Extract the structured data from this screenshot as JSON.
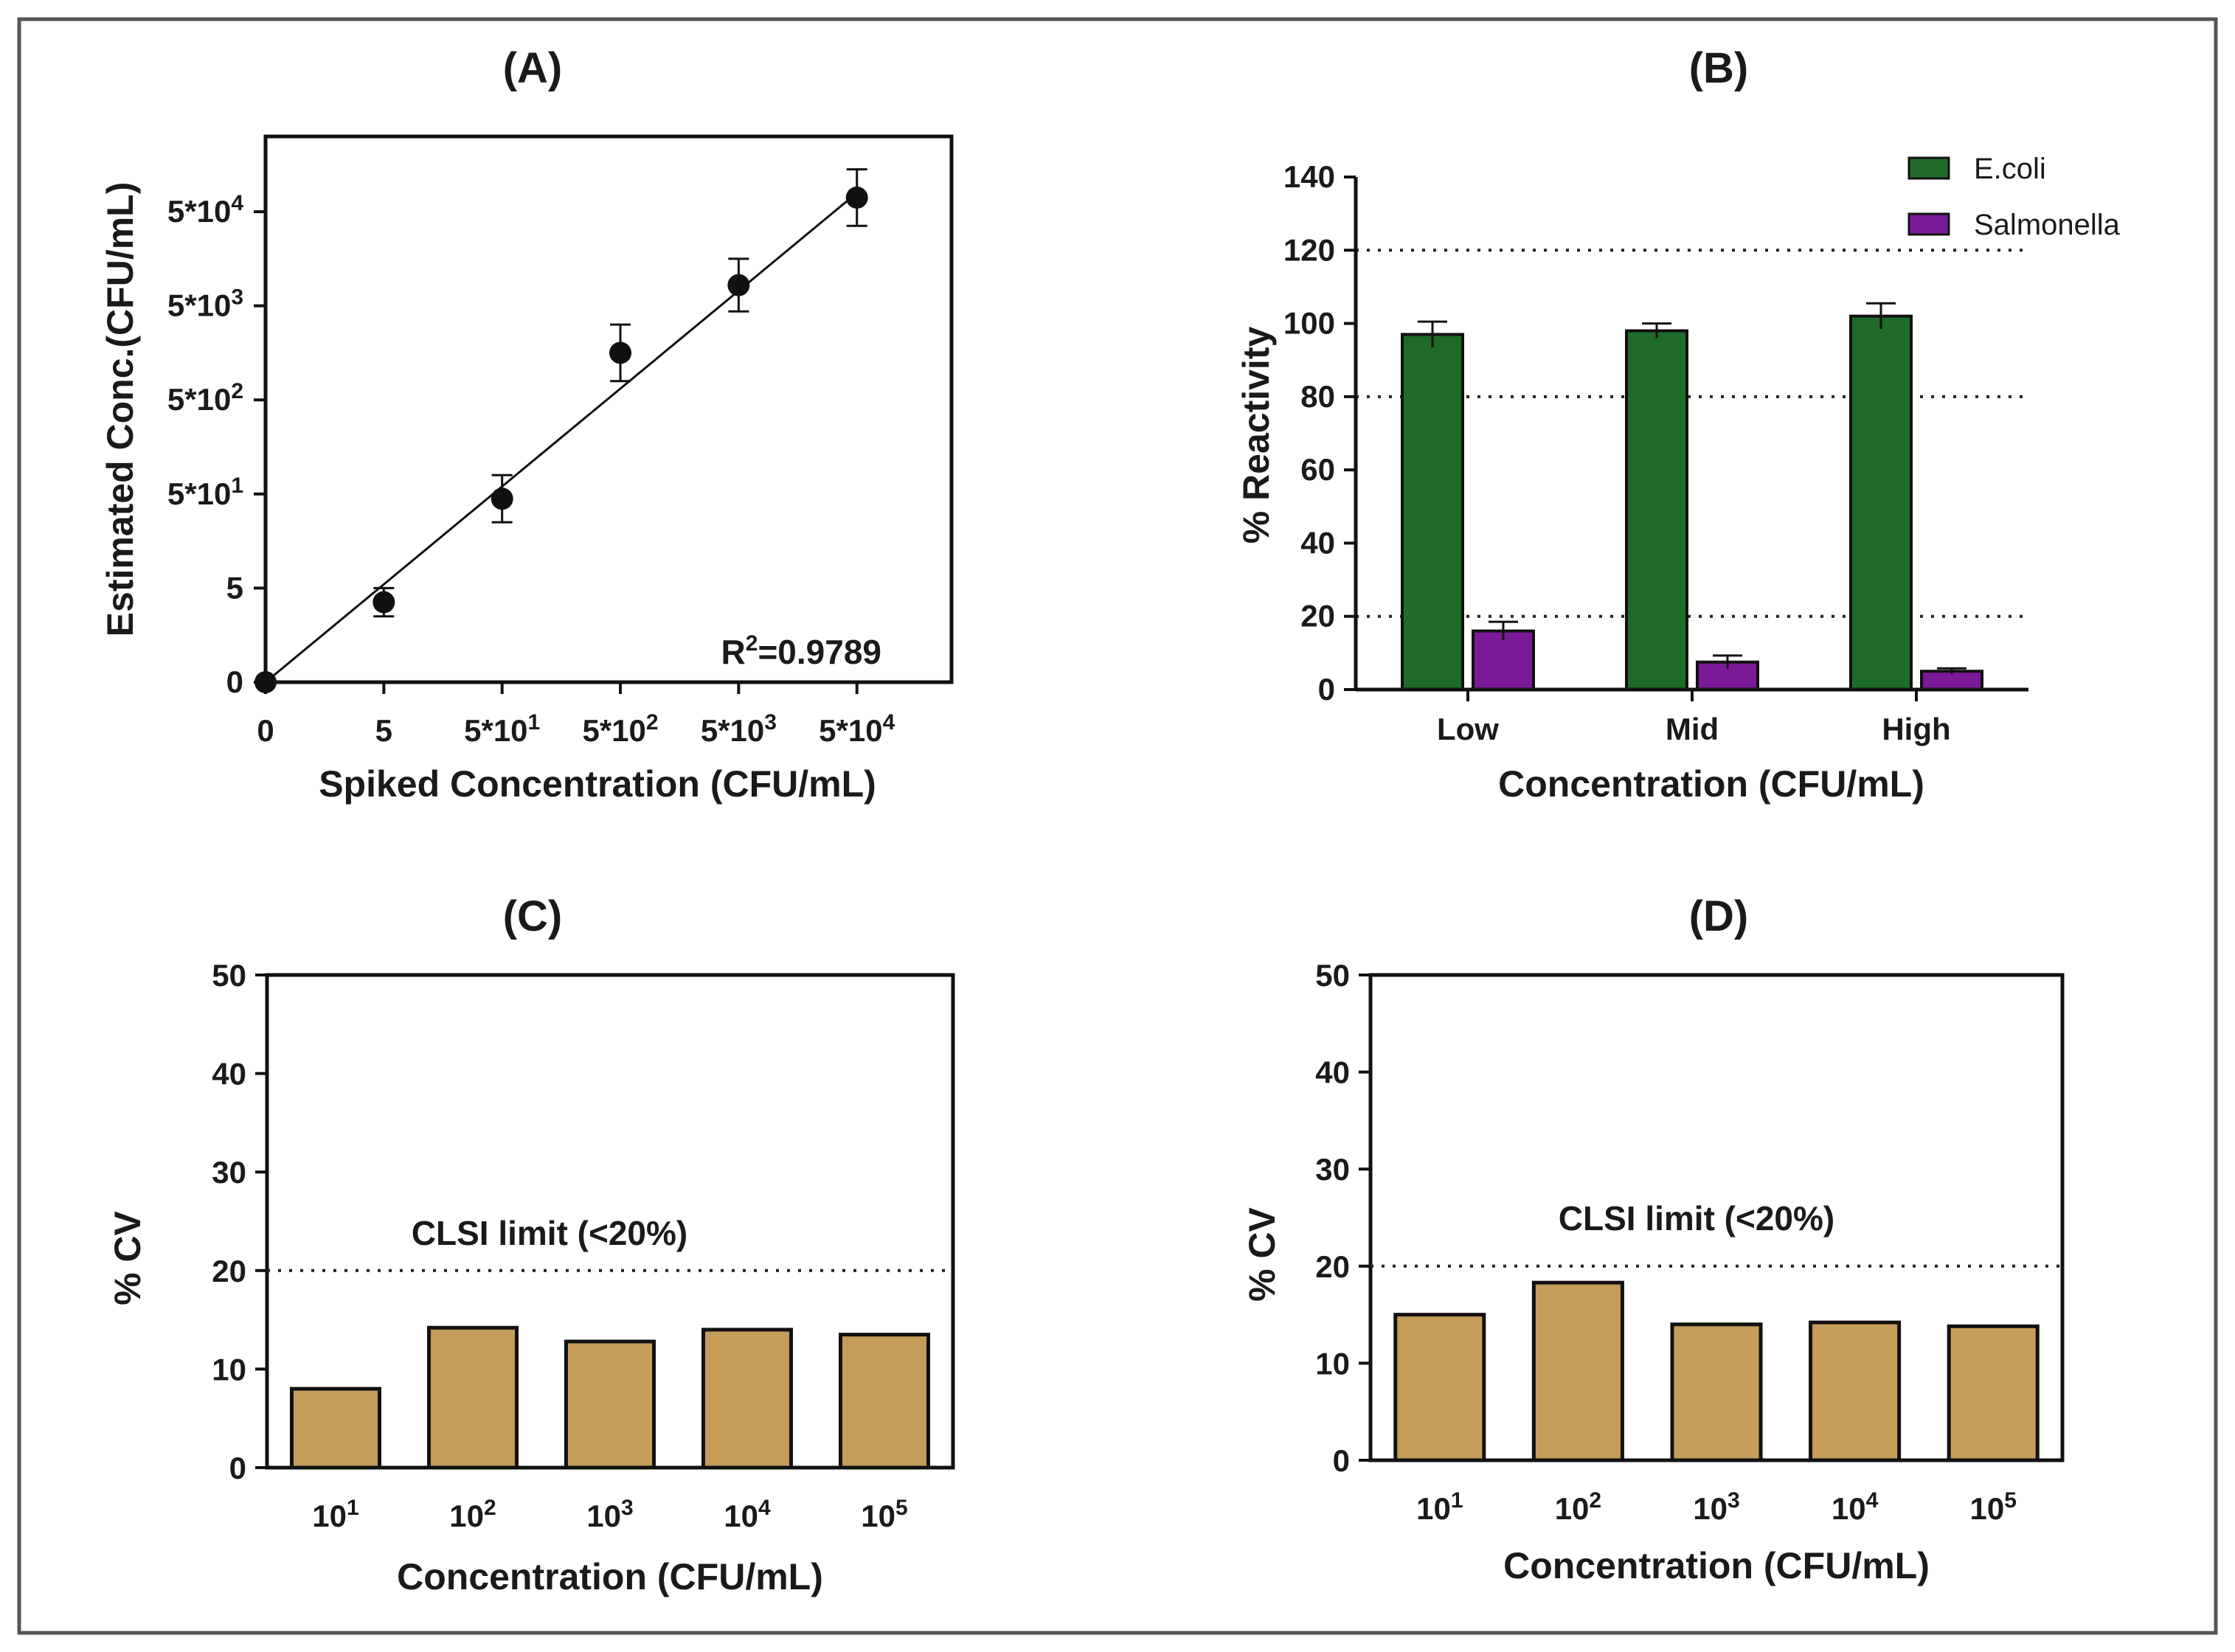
{
  "chart_data": [
    {
      "panel": "(A)",
      "type": "scatter",
      "title": "(A)",
      "xlabel": "Spiked Concentration (CFU/mL)",
      "ylabel": "Estimated Conc.(CFU/mL)",
      "x_ticks": [
        {
          "base": "0",
          "exp": ""
        },
        {
          "base": "5",
          "exp": ""
        },
        {
          "base": "5*10",
          "exp": "1"
        },
        {
          "base": "5*10",
          "exp": "2"
        },
        {
          "base": "5*10",
          "exp": "3"
        },
        {
          "base": "5*10",
          "exp": "4"
        }
      ],
      "y_ticks": [
        {
          "base": "0",
          "exp": ""
        },
        {
          "base": "5",
          "exp": ""
        },
        {
          "base": "5*10",
          "exp": "1"
        },
        {
          "base": "5*10",
          "exp": "2"
        },
        {
          "base": "5*10",
          "exp": "3"
        },
        {
          "base": "5*10",
          "exp": "4"
        }
      ],
      "xlim": [
        0,
        5.8
      ],
      "ylim": [
        0,
        5.8
      ],
      "points": [
        {
          "x": 0,
          "y": 0,
          "err": 0
        },
        {
          "x": 1,
          "y": 0.85,
          "err": 0.15
        },
        {
          "x": 2,
          "y": 1.95,
          "err": 0.25
        },
        {
          "x": 3,
          "y": 3.5,
          "err": 0.3
        },
        {
          "x": 4,
          "y": 4.22,
          "err": 0.28
        },
        {
          "x": 5,
          "y": 5.15,
          "err": 0.3
        }
      ],
      "fit_line": {
        "x": [
          0,
          5
        ],
        "y": [
          0,
          5.2
        ]
      },
      "r2_label": "R",
      "r2_sup": "2",
      "r2_value": "=0.9789"
    },
    {
      "panel": "(B)",
      "type": "bar",
      "title": "(B)",
      "xlabel": "Concentration (CFU/mL)",
      "ylabel": "% Reactivity",
      "categories": [
        "Low",
        "Mid",
        "High"
      ],
      "ylim": [
        0,
        140
      ],
      "y_ticks": [
        "0",
        "20",
        "40",
        "60",
        "80",
        "100",
        "120",
        "140"
      ],
      "reference_lines": [
        20,
        80,
        120
      ],
      "series": [
        {
          "name": "E.coli",
          "color": "#1e6b2a",
          "values": [
            97,
            98,
            102
          ],
          "errors": [
            3.5,
            2,
            3.5
          ]
        },
        {
          "name": "Salmonella",
          "color": "#7a1a99",
          "values": [
            16,
            7.5,
            5
          ],
          "errors": [
            2.5,
            1.8,
            0.8
          ]
        }
      ],
      "legend": "top-right"
    },
    {
      "panel": "(C)",
      "type": "bar",
      "title": "(C)",
      "xlabel": "Concentration (CFU/mL)",
      "ylabel": "% CV",
      "categories": [
        {
          "base": "10",
          "exp": "1"
        },
        {
          "base": "10",
          "exp": "2"
        },
        {
          "base": "10",
          "exp": "3"
        },
        {
          "base": "10",
          "exp": "4"
        },
        {
          "base": "10",
          "exp": "5"
        }
      ],
      "values": [
        8,
        14.2,
        12.8,
        14,
        13.5
      ],
      "color": "#c69c5a",
      "ylim": [
        0,
        50
      ],
      "y_ticks": [
        "0",
        "10",
        "20",
        "30",
        "40",
        "50"
      ],
      "reference_line": 20,
      "reference_label": "CLSI limit (<20%)"
    },
    {
      "panel": "(D)",
      "type": "bar",
      "title": "(D)",
      "xlabel": "Concentration (CFU/mL)",
      "ylabel": "% CV",
      "categories": [
        {
          "base": "10",
          "exp": "1"
        },
        {
          "base": "10",
          "exp": "2"
        },
        {
          "base": "10",
          "exp": "3"
        },
        {
          "base": "10",
          "exp": "4"
        },
        {
          "base": "10",
          "exp": "5"
        }
      ],
      "values": [
        15,
        18.3,
        14,
        14.2,
        13.8
      ],
      "color": "#c69c5a",
      "ylim": [
        0,
        50
      ],
      "y_ticks": [
        "0",
        "10",
        "20",
        "30",
        "40",
        "50"
      ],
      "reference_line": 20,
      "reference_label": "CLSI limit (<20%)"
    }
  ]
}
